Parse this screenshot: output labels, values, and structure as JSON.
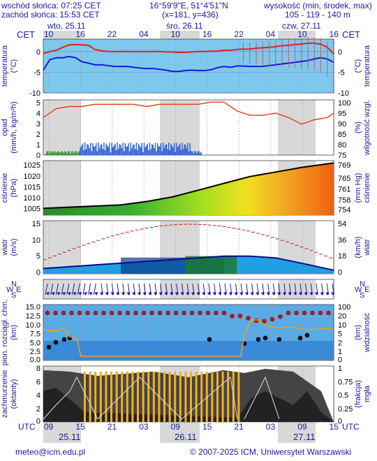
{
  "header": {
    "sunrise": "wschód słońca: 07:25 CET",
    "sunset": "zachód słońca: 15:53 CET",
    "coords": "16°59'9\"E, 51°4'51\"N",
    "grid": "(x=181, y=436)",
    "altitude_title": "wysokość (min, środek, max)",
    "altitude_values": "105 - 119 - 140 m",
    "tz_left": "CET",
    "tz_right": "CET",
    "tz_bottom_left": "UTC",
    "tz_bottom_right": "UTC"
  },
  "days_top": [
    {
      "label": "wto, 25.11"
    },
    {
      "label": "śro, 26.11"
    },
    {
      "label": "czw, 27.11"
    }
  ],
  "hours_top": [
    "10",
    "16",
    "22",
    "04",
    "10",
    "16",
    "22",
    "04",
    "10",
    "16"
  ],
  "hours_bottom": [
    "09",
    "15",
    "21",
    "03",
    "09",
    "15",
    "21",
    "03",
    "09",
    "15"
  ],
  "days_bottom": [
    "25.11",
    "26.11",
    "27.11"
  ],
  "panels": {
    "temperature": {
      "left": [
        "temperatura",
        "(°C)"
      ],
      "right": [
        "(°C)",
        "temperatura"
      ],
      "ticks": [
        "0",
        "-5",
        "-10"
      ]
    },
    "precip": {
      "left": [
        "opad",
        "(mm/h, kg/m²h)"
      ],
      "right": [
        "(%)",
        "wilgotność wzgl."
      ],
      "ticks_left": [
        "5",
        "4",
        "3",
        "2",
        "1",
        "0"
      ],
      "ticks_right": [
        "100",
        "95",
        "90",
        "85",
        "80",
        "75"
      ]
    },
    "pressure": {
      "left": [
        "ciśnienie",
        "(hPa)"
      ],
      "right": [
        "(mm Hg)",
        "ciśnienie"
      ],
      "ticks_left": [
        "1025",
        "1020",
        "1015",
        "1010",
        "1005"
      ],
      "ticks_right": [
        "769",
        "765",
        "761",
        "758",
        "754"
      ]
    },
    "wind": {
      "left": [
        "wiatr",
        "(m/s)"
      ],
      "right": [
        "(km/h)",
        "wiatr"
      ],
      "ticks_left": [
        "15",
        "10",
        "5",
        "0"
      ],
      "ticks_right": [
        "54",
        "36",
        "18",
        "0"
      ]
    },
    "winddir": {
      "compass_n": "N",
      "compass_s": "S",
      "compass_w": "W",
      "compass_e": "E"
    },
    "visibility": {
      "left": [
        "pion. rozciągł. chm.",
        "(km)"
      ],
      "right": [
        "(km)",
        "widzialność"
      ],
      "ticks_left": [
        "15.0",
        "12.5",
        "10.0",
        "7.5",
        "5.0",
        "2.5",
        "0.0"
      ],
      "ticks_right": [
        "100",
        "20",
        "10",
        "5",
        "2",
        "1",
        "0"
      ]
    },
    "clouds": {
      "left": [
        "zachmurzenie",
        "(oktanty)"
      ],
      "right": [
        "(frakcja)",
        "mgła"
      ],
      "ticks_left": [
        "8",
        "6",
        "4",
        "2",
        "0"
      ],
      "ticks_right": [
        "1",
        "0.75",
        "0.5",
        "0.25",
        "0"
      ]
    }
  },
  "footer": {
    "email": "meteo@icm.edu.pl",
    "copyright": "© 2007-2025 ICM, Uniwersytet Warszawski"
  },
  "chart_data": [
    {
      "type": "line",
      "name": "temperature",
      "x_hours": [
        0,
        6,
        12,
        18,
        24,
        30,
        36,
        42,
        48,
        54,
        60,
        66,
        72,
        78,
        84,
        90,
        96,
        102,
        108,
        114,
        120,
        126,
        132,
        138,
        144,
        150,
        156,
        162,
        168,
        174,
        180,
        186,
        192,
        198,
        204,
        210,
        216,
        222,
        228,
        234,
        240,
        246,
        252,
        258,
        264,
        270
      ],
      "series": [
        {
          "values": [
            -0.5,
            0,
            0.3,
            1,
            1.6,
            1.7,
            1.6,
            1.5,
            0.5,
            0.2,
            0,
            0,
            0,
            0,
            0,
            0,
            0,
            0,
            0,
            -0.1,
            -0.1,
            -0.2,
            -0.2,
            -0.1,
            0,
            0,
            0.1,
            0.1,
            0.3,
            0.3,
            0.5,
            0.6,
            0.6,
            0.8,
            0.9,
            1,
            1.2,
            1.4,
            1.5,
            1.7,
            1.8,
            2,
            2,
            1.8,
            1,
            -0.5
          ]
        },
        {
          "values": [
            -4.5,
            -2,
            -1.5,
            -1.5,
            -1.2,
            -1.5,
            -2.5,
            -2.8,
            -3.2,
            -3.2,
            -3.4,
            -3.6,
            -3.6,
            -3.6,
            -3.8,
            -4,
            -4.1,
            -4.1,
            -4.3,
            -4.5,
            -4.8,
            -4.8,
            -4.6,
            -4.5,
            -4.6,
            -4.6,
            -4.4,
            -3.9,
            -3.6,
            -3.8,
            -3.5,
            -3.5,
            -3.6,
            -3.6,
            -3.6,
            -3.4,
            -3.2,
            -3,
            -2.8,
            -2.6,
            -2.4,
            -2.2,
            -1.8,
            -1.5,
            -1.8,
            -2.6
          ]
        }
      ],
      "ylim": [
        -10,
        3
      ]
    },
    {
      "type": "line",
      "name": "humidity",
      "x_hours": [
        0,
        12,
        24,
        36,
        48,
        60,
        72,
        84,
        96,
        108,
        120,
        132,
        144,
        156,
        168,
        180,
        192,
        204,
        216,
        228,
        240,
        252,
        264,
        270
      ],
      "values": [
        92,
        96,
        97,
        97,
        98,
        98,
        98,
        98,
        97,
        98,
        98,
        98,
        98,
        99,
        99,
        95,
        93,
        93,
        94,
        92,
        89,
        91,
        92,
        94
      ],
      "ylim": [
        75,
        100
      ]
    },
    {
      "type": "area",
      "name": "pressure",
      "x_hours": [
        0,
        24,
        48,
        72,
        96,
        120,
        144,
        168,
        192,
        216,
        240,
        270
      ],
      "values": [
        1005,
        1005.5,
        1006,
        1006.5,
        1008,
        1010,
        1013,
        1016,
        1019,
        1021,
        1023,
        1025
      ],
      "ylim": [
        1002,
        1026
      ]
    },
    {
      "type": "line",
      "name": "wind",
      "x_hours": [
        0,
        24,
        48,
        72,
        96,
        120,
        144,
        168,
        192,
        216,
        240,
        270
      ],
      "values": [
        1.5,
        2,
        2.5,
        3,
        3.5,
        4,
        4.5,
        5,
        5,
        4.5,
        3,
        1
      ],
      "gust": [
        4,
        6,
        8,
        10,
        12,
        13,
        14,
        14,
        13,
        10,
        6,
        3
      ],
      "ylim": [
        0,
        15
      ]
    }
  ]
}
